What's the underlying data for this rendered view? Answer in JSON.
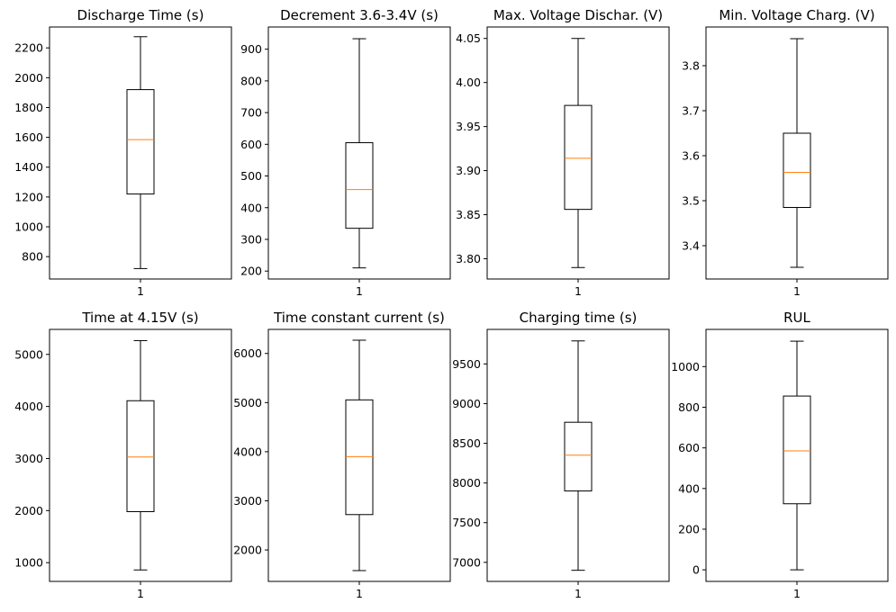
{
  "chart_data": [
    {
      "type": "boxplot",
      "title": "Discharge Time (s)",
      "categories": [
        "1"
      ],
      "ylim": [
        650,
        2340
      ],
      "yticks": [
        800,
        1000,
        1200,
        1400,
        1600,
        1800,
        2000,
        2200
      ],
      "box": {
        "whisker_low": 720,
        "q1": 1220,
        "median": 1585,
        "q3": 1920,
        "whisker_high": 2275
      }
    },
    {
      "type": "boxplot",
      "title": "Decrement 3.6-3.4V (s)",
      "categories": [
        "1"
      ],
      "ylim": [
        175,
        970
      ],
      "yticks": [
        200,
        300,
        400,
        500,
        600,
        700,
        800,
        900
      ],
      "box": {
        "whisker_low": 210,
        "q1": 335,
        "median": 457,
        "q3": 605,
        "whisker_high": 933
      }
    },
    {
      "type": "boxplot",
      "title": "Max. Voltage Dischar. (V)",
      "categories": [
        "1"
      ],
      "ylim": [
        3.777,
        4.063
      ],
      "yticks": [
        "3.80",
        "3.85",
        "3.90",
        "3.95",
        "4.00",
        "4.05"
      ],
      "box": {
        "whisker_low": 3.79,
        "q1": 3.856,
        "median": 3.914,
        "q3": 3.974,
        "whisker_high": 4.05
      }
    },
    {
      "type": "boxplot",
      "title": "Min. Voltage Charg. (V)",
      "categories": [
        "1"
      ],
      "ylim": [
        3.326,
        3.886
      ],
      "yticks": [
        "3.4",
        "3.5",
        "3.6",
        "3.7",
        "3.8"
      ],
      "box": {
        "whisker_low": 3.352,
        "q1": 3.485,
        "median": 3.563,
        "q3": 3.65,
        "whisker_high": 3.86
      }
    },
    {
      "type": "boxplot",
      "title": "Time at 4.15V (s)",
      "categories": [
        "1"
      ],
      "ylim": [
        640,
        5480
      ],
      "yticks": [
        1000,
        2000,
        3000,
        4000,
        5000
      ],
      "box": {
        "whisker_low": 860,
        "q1": 1980,
        "median": 3030,
        "q3": 4110,
        "whisker_high": 5265
      }
    },
    {
      "type": "boxplot",
      "title": "Time constant current (s)",
      "categories": [
        "1"
      ],
      "ylim": [
        1360,
        6490
      ],
      "yticks": [
        2000,
        3000,
        4000,
        5000,
        6000
      ],
      "box": {
        "whisker_low": 1580,
        "q1": 2720,
        "median": 3900,
        "q3": 5055,
        "whisker_high": 6270
      }
    },
    {
      "type": "boxplot",
      "title": "Charging time (s)",
      "categories": [
        "1"
      ],
      "ylim": [
        6760,
        9935
      ],
      "yticks": [
        7000,
        7500,
        8000,
        8500,
        9000,
        9500
      ],
      "box": {
        "whisker_low": 6900,
        "q1": 7900,
        "median": 8350,
        "q3": 8765,
        "whisker_high": 9790
      }
    },
    {
      "type": "boxplot",
      "title": "RUL",
      "categories": [
        "1"
      ],
      "ylim": [
        -57,
        1183
      ],
      "yticks": [
        0,
        200,
        400,
        600,
        800,
        1000
      ],
      "box": {
        "whisker_low": 0,
        "q1": 325,
        "median": 585,
        "q3": 855,
        "whisker_high": 1125
      }
    }
  ],
  "colors": {
    "box": "#000000",
    "median": "#ff7f0e",
    "background": "#ffffff"
  }
}
